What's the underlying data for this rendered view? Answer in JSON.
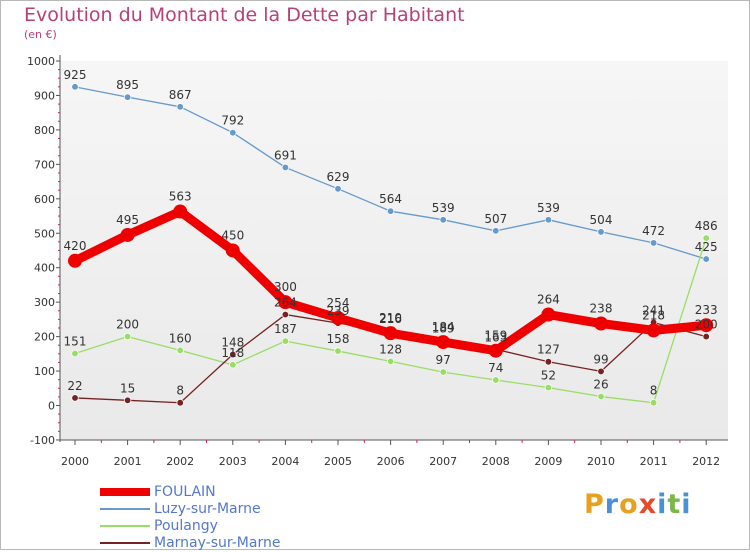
{
  "title": "Evolution du Montant de la Dette par Habitant",
  "subtitle": "(en €)",
  "logo": {
    "text": "Proxiti",
    "letters": [
      "P",
      "r",
      "o",
      "x",
      "i",
      "t",
      "i"
    ],
    "colors": [
      "#e8a020",
      "#4a90d9",
      "#e8a020",
      "#e54a2a",
      "#4a90d9",
      "#7ab648",
      "#4a90d9"
    ]
  },
  "chart_data": {
    "type": "line",
    "title": "Evolution du Montant de la Dette par Habitant",
    "ylabel": "(en €)",
    "ylim": [
      -100,
      1000
    ],
    "yticks": [
      "-100",
      "0",
      "100",
      "200",
      "300",
      "400",
      "500",
      "600",
      "700",
      "800",
      "900",
      "1000"
    ],
    "x": [
      "2000",
      "2001",
      "2002",
      "2003",
      "2004",
      "2005",
      "2006",
      "2007",
      "2008",
      "2009",
      "2010",
      "2011",
      "2012"
    ],
    "grid": false,
    "legend_position": "bottom-left",
    "series": [
      {
        "name": "FOULAIN",
        "color": "#ee0000",
        "values": [
          420,
          495,
          563,
          450,
          300,
          254,
          210,
          184,
          159,
          264,
          238,
          218,
          233
        ]
      },
      {
        "name": "Luzy-sur-Marne",
        "color": "#6699cc",
        "values": [
          925,
          895,
          867,
          792,
          691,
          629,
          564,
          539,
          507,
          539,
          504,
          472,
          425
        ]
      },
      {
        "name": "Poulangy",
        "color": "#99dd66",
        "values": [
          151,
          200,
          160,
          118,
          187,
          158,
          128,
          97,
          74,
          52,
          26,
          8,
          486
        ]
      },
      {
        "name": "Marnay-sur-Marne",
        "color": "#772222",
        "values": [
          22,
          15,
          8,
          148,
          264,
          239,
          216,
          189,
          163,
          127,
          99,
          241,
          200
        ]
      }
    ]
  }
}
